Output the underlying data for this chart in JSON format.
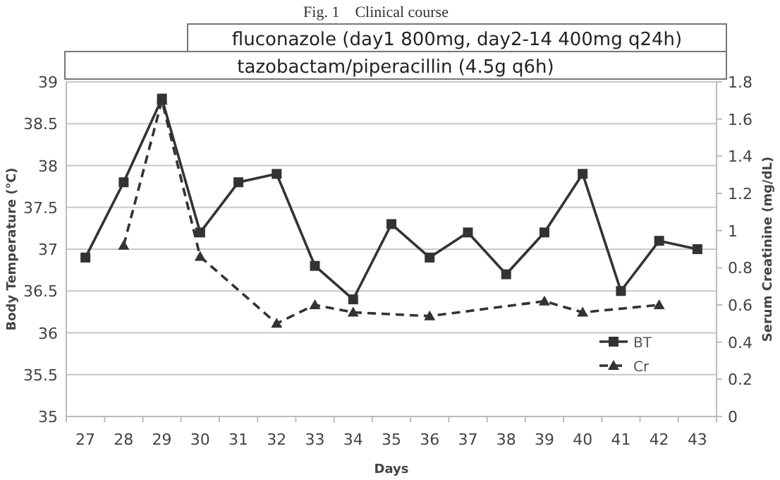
{
  "chart_data": {
    "type": "line",
    "title": "Fig. 1　Clinical course",
    "xlabel": "Days",
    "ylabel": "Body Temperature (℃)",
    "y2label": "Serum Creatinine (mg/dL)",
    "categories": [
      "27",
      "28",
      "29",
      "30",
      "31",
      "32",
      "33",
      "34",
      "35",
      "36",
      "37",
      "38",
      "39",
      "40",
      "41",
      "42",
      "43"
    ],
    "series": [
      {
        "name": "BT",
        "color": "#333333",
        "marker": "square",
        "line_style": "solid",
        "values": [
          36.9,
          37.8,
          38.8,
          37.2,
          37.8,
          37.9,
          36.8,
          36.4,
          37.3,
          36.9,
          37.2,
          36.7,
          37.2,
          37.9,
          36.5,
          37.1,
          37.0
        ]
      },
      {
        "name": "Cr",
        "color": "#333333",
        "marker": "triangle",
        "line_style": "dashed",
        "axis": "y2",
        "values": [
          null,
          0.92,
          1.7,
          0.86,
          null,
          0.5,
          0.6,
          0.56,
          null,
          0.54,
          null,
          null,
          0.62,
          0.56,
          null,
          0.6,
          null
        ]
      }
    ],
    "ylim": [
      35,
      39
    ],
    "yticks": [
      35,
      35.5,
      36,
      36.5,
      37,
      37.5,
      38,
      38.5,
      39
    ],
    "y2lim": [
      0,
      1.8
    ],
    "y2ticks": [
      0,
      0.2,
      0.4,
      0.6,
      0.8,
      1,
      1.2,
      1.4,
      1.6,
      1.8
    ],
    "grid": "y",
    "legend": "bottom right",
    "annotations": [
      "fluconazole  (day1 800mg, day2-14 400mg q24h)",
      "tazobactam/piperacillin (4.5g q6h)"
    ]
  }
}
